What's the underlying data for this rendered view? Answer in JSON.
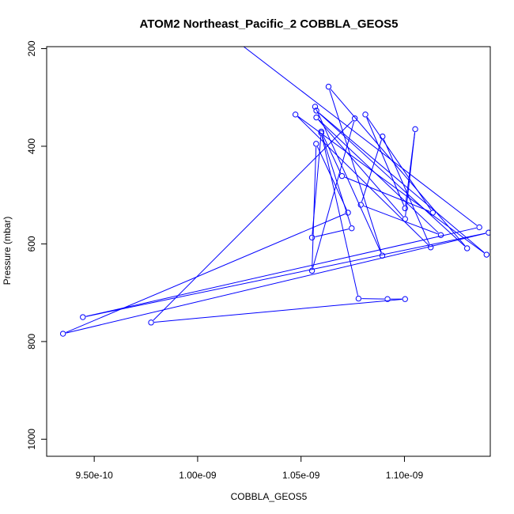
{
  "chart_data": {
    "type": "line",
    "title": "ATOM2 Northeast_Pacific_2 COBBLA_GEOS5",
    "xlabel": "COBBLA_GEOS5",
    "ylabel": "Pressure (mbar)",
    "xlim": [
      9.27e-10,
      1.1415e-09
    ],
    "ylim": [
      1035,
      196
    ],
    "y_inverted": true,
    "x_ticks": [
      9.5e-10,
      1e-09,
      1.05e-09,
      1.1e-09
    ],
    "x_tick_labels": [
      "9.50e-10",
      "1.00e-09",
      "1.05e-09",
      "1.10e-09"
    ],
    "y_ticks": [
      200,
      400,
      600,
      800,
      1000
    ],
    "y_tick_labels": [
      "200",
      "400",
      "600",
      "800",
      "1000"
    ],
    "grid": false,
    "legend": "none",
    "series": [
      {
        "color": "#0000ff",
        "markers": "open-circle",
        "points": [
          [
            1.0112e-09,
            160
          ],
          [
            1.1362e-09,
            566
          ],
          [
            9.445e-10,
            750
          ],
          [
            1.1407e-09,
            577
          ],
          [
            9.349e-10,
            784
          ],
          [
            1.0727e-09,
            536
          ],
          [
            1.0573e-09,
            395
          ],
          [
            1.0553e-09,
            655
          ],
          [
            1.076e-09,
            343
          ],
          [
            9.775e-10,
            761
          ],
          [
            1.1003e-09,
            713
          ],
          [
            1.0918e-09,
            713
          ],
          [
            1.0778e-09,
            712
          ],
          [
            1.0598e-09,
            373
          ],
          [
            1.0745e-09,
            568
          ],
          [
            1.0553e-09,
            587
          ],
          [
            1.0598e-09,
            370
          ],
          [
            1.0698e-09,
            461
          ],
          [
            1.1137e-09,
            536
          ],
          [
            1.0811e-09,
            335
          ],
          [
            1.1003e-09,
            527
          ],
          [
            1.1052e-09,
            365
          ],
          [
            1.1003e-09,
            549
          ],
          [
            1.0574e-09,
            341
          ],
          [
            1.1176e-09,
            582
          ],
          [
            1.0789e-09,
            520
          ],
          [
            1.0894e-09,
            380
          ],
          [
            1.1127e-09,
            607
          ],
          [
            1.0473e-09,
            335
          ],
          [
            1.1397e-09,
            622
          ],
          [
            1.0574e-09,
            327
          ],
          [
            1.1303e-09,
            609
          ],
          [
            1.0633e-09,
            278
          ],
          [
            1.0893e-09,
            624
          ],
          [
            1.0568e-09,
            319
          ]
        ]
      }
    ]
  }
}
